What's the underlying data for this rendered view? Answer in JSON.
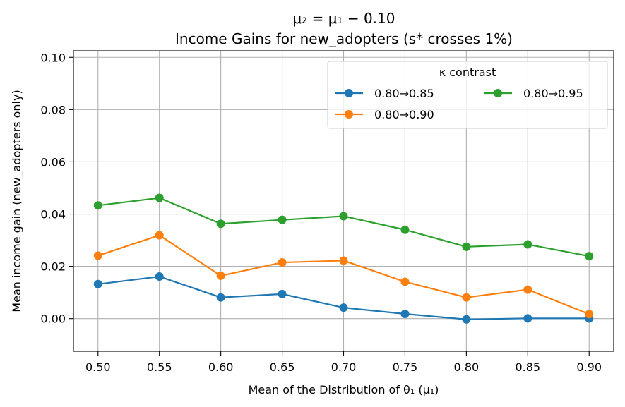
{
  "chart_data": {
    "type": "line",
    "title_line1": "μ₂ = μ₁ − 0.10",
    "title_line2": "Income Gains for new_adopters (s* crosses 1%)",
    "xlabel": "Mean of the Distribution of θ₁ (μ₁)",
    "ylabel": "Mean income gain (new_adopters only)",
    "x": [
      0.5,
      0.55,
      0.6,
      0.65,
      0.7,
      0.75,
      0.8,
      0.85,
      0.9
    ],
    "x_tick_labels": [
      "0.50",
      "0.55",
      "0.60",
      "0.65",
      "0.70",
      "0.75",
      "0.80",
      "0.85",
      "0.90"
    ],
    "y_ticks": [
      0.0,
      0.02,
      0.04,
      0.06,
      0.08,
      0.1
    ],
    "y_tick_labels": [
      "0.00",
      "0.02",
      "0.04",
      "0.06",
      "0.08",
      "0.10"
    ],
    "xlim": [
      0.48,
      0.92
    ],
    "ylim": [
      -0.0125,
      0.1025
    ],
    "grid": true,
    "legend": {
      "title": "κ contrast",
      "placement": "top-right",
      "columns": 2
    },
    "series": [
      {
        "name": "0.80→0.85",
        "color": "#1f77b4",
        "values": [
          0.0132,
          0.0161,
          0.0081,
          0.0094,
          0.0042,
          0.0018,
          -0.0003,
          0.0001,
          0.0001
        ]
      },
      {
        "name": "0.80→0.90",
        "color": "#ff7f0e",
        "values": [
          0.0241,
          0.0319,
          0.0164,
          0.0215,
          0.0222,
          0.0141,
          0.0081,
          0.0111,
          0.0017
        ]
      },
      {
        "name": "0.80→0.95",
        "color": "#2ca02c",
        "values": [
          0.0433,
          0.0462,
          0.0363,
          0.0378,
          0.0392,
          0.034,
          0.0275,
          0.0284,
          0.0239
        ]
      }
    ]
  }
}
